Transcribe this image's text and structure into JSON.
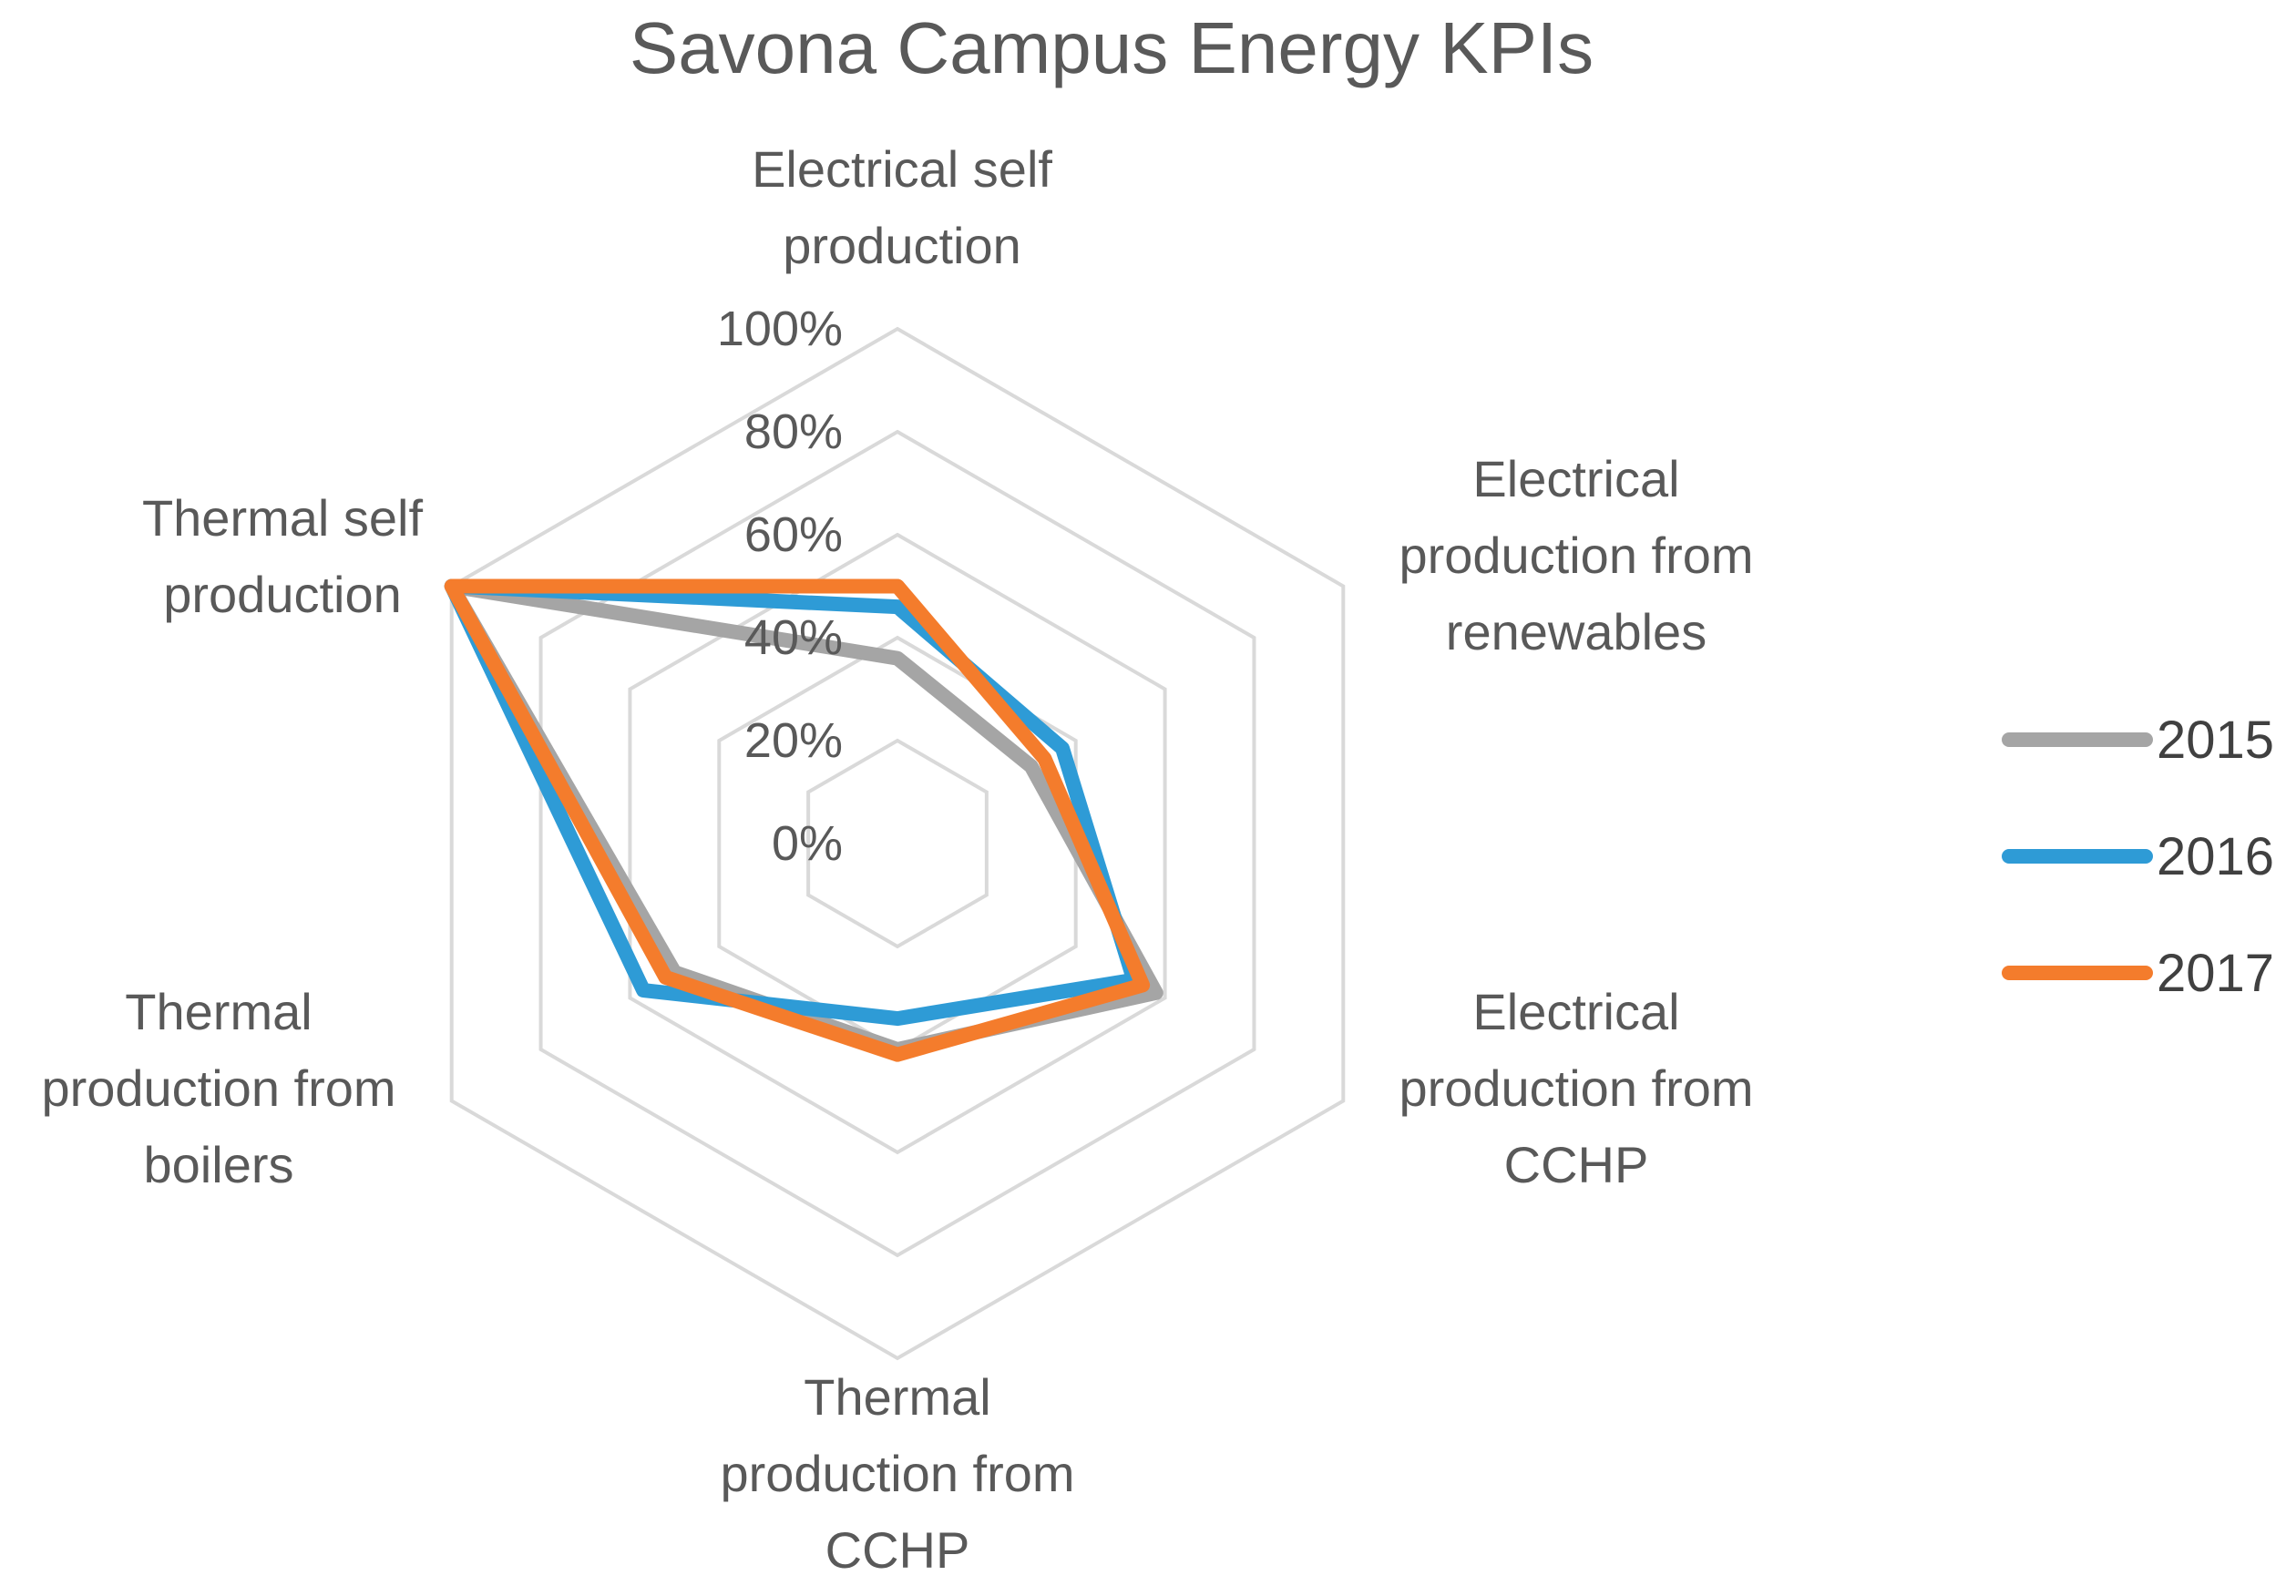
{
  "chart_data": {
    "type": "radar",
    "title": "Savona Campus Energy KPIs",
    "categories": [
      [
        "Electrical self",
        "production"
      ],
      [
        "Electrical",
        "production from",
        "renewables"
      ],
      [
        "Electrical",
        "production from",
        "CCHP"
      ],
      [
        "Thermal",
        "production from",
        "CCHP"
      ],
      [
        "Thermal",
        "production from",
        "boilers"
      ],
      [
        "Thermal self",
        "production"
      ]
    ],
    "axis": {
      "min": 0,
      "max": 100,
      "step": 20,
      "tick_labels": [
        "0%",
        "20%",
        "40%",
        "60%",
        "80%",
        "100%"
      ]
    },
    "series": [
      {
        "name": "2015",
        "color": "#a5a5a5",
        "values": [
          36,
          30,
          58,
          40,
          50,
          100
        ]
      },
      {
        "name": "2016",
        "color": "#2e9bd6",
        "values": [
          46,
          37,
          53,
          34,
          57,
          100
        ]
      },
      {
        "name": "2017",
        "color": "#f47c2c",
        "values": [
          50,
          33,
          55,
          41,
          52,
          100
        ]
      }
    ],
    "legend_position": "right"
  }
}
